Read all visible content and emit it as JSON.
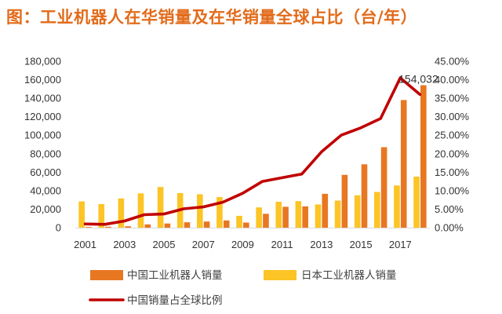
{
  "chart_data": {
    "type": "bar",
    "title": "图：工业机器人在华销量及在华销量全球占比（台/年）",
    "categories": [
      "2001",
      "2002",
      "2003",
      "2004",
      "2005",
      "2006",
      "2007",
      "2008",
      "2009",
      "2010",
      "2011",
      "2012",
      "2013",
      "2014",
      "2015",
      "2016",
      "2017",
      "2018"
    ],
    "x_tick_labels": [
      "2001",
      "2003",
      "2005",
      "2007",
      "2009",
      "2011",
      "2013",
      "2015",
      "2017"
    ],
    "y_left": {
      "min": 0,
      "max": 180000,
      "step": 20000,
      "tick_labels": [
        "0",
        "20,000",
        "40,000",
        "60,000",
        "80,000",
        "100,000",
        "120,000",
        "140,000",
        "160,000",
        "180,000"
      ]
    },
    "y_right": {
      "min": 0,
      "max": 45,
      "step": 5,
      "tick_labels": [
        "0.00%",
        "5.00%",
        "10.00%",
        "15.00%",
        "20.00%",
        "25.00%",
        "30.00%",
        "35.00%",
        "40.00%",
        "45.00%"
      ]
    },
    "series": [
      {
        "name": "中国工业机器人销量",
        "axis": "left",
        "kind": "bar",
        "color": "#E87722",
        "values": [
          700,
          1000,
          1500,
          3500,
          4500,
          5800,
          6600,
          7800,
          5500,
          15000,
          22600,
          23000,
          36600,
          57100,
          68500,
          87000,
          138000,
          154032
        ]
      },
      {
        "name": "日本工业机器人销量",
        "axis": "left",
        "kind": "bar",
        "color": "#FCC425",
        "values": [
          28400,
          25500,
          31600,
          37100,
          44000,
          37400,
          36100,
          33100,
          12800,
          21900,
          28000,
          28700,
          25100,
          29300,
          35000,
          38600,
          45600,
          55200
        ]
      },
      {
        "name": "中国销量占全球比例",
        "axis": "right",
        "kind": "line",
        "color": "#C00000",
        "values": [
          1.0,
          0.9,
          1.8,
          3.5,
          3.7,
          5.1,
          5.6,
          6.9,
          9.3,
          12.5,
          13.5,
          14.5,
          20.5,
          25.0,
          27.0,
          29.5,
          40.5,
          36.0
        ]
      }
    ],
    "annotations": [
      {
        "category": "2018",
        "text": "154,032"
      }
    ],
    "legend": {
      "placement": "bottom"
    },
    "grid": false
  }
}
